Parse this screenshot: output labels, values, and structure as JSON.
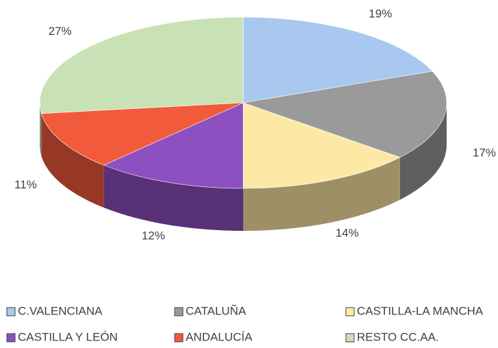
{
  "chart_data": {
    "type": "pie",
    "categories": [
      "C.VALENCIANA",
      "CATALUÑA",
      "CASTILLA-LA MANCHA",
      "CASTILLA Y LEÓN",
      "ANDALUCÍA",
      "RESTO CC.AA."
    ],
    "values": [
      19,
      17,
      14,
      12,
      11,
      27
    ],
    "value_labels": [
      "19%",
      "17%",
      "14%",
      "12%",
      "11%",
      "27%"
    ],
    "colors": [
      "#a9c8ef",
      "#9a9a9a",
      "#fde9a6",
      "#8e4fc0",
      "#f25a3c",
      "#c9e2b5"
    ],
    "legend": "bottom"
  }
}
